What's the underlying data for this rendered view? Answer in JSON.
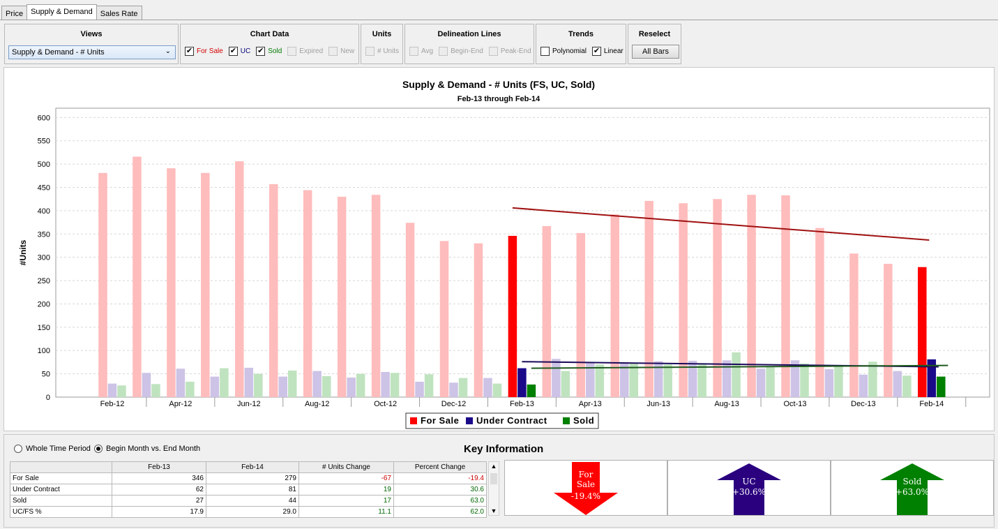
{
  "tabs": [
    {
      "label": "Price"
    },
    {
      "label": "Supply & Demand"
    },
    {
      "label": "Sales Rate"
    }
  ],
  "toolbar": {
    "views": {
      "title": "Views",
      "selected": "Supply & Demand - # Units"
    },
    "chart_data": {
      "title": "Chart Data",
      "items": [
        {
          "label": "For Sale",
          "checked": true,
          "enabled": true,
          "color": "#d40000"
        },
        {
          "label": "UC",
          "checked": true,
          "enabled": true,
          "color": "#00007a"
        },
        {
          "label": "Sold",
          "checked": true,
          "enabled": true,
          "color": "#007a00"
        },
        {
          "label": "Expired",
          "checked": false,
          "enabled": false
        },
        {
          "label": "New",
          "checked": false,
          "enabled": false
        }
      ]
    },
    "units": {
      "title": "Units",
      "items": [
        {
          "label": "# Units",
          "checked": false,
          "enabled": false
        }
      ]
    },
    "delineation": {
      "title": "Delineation Lines",
      "items": [
        {
          "label": "Avg",
          "checked": false,
          "enabled": false
        },
        {
          "label": "Begin-End",
          "checked": false,
          "enabled": false
        },
        {
          "label": "Peak-End",
          "checked": false,
          "enabled": false
        }
      ]
    },
    "trends": {
      "title": "Trends",
      "items": [
        {
          "label": "Polynomial",
          "checked": false,
          "enabled": true
        },
        {
          "label": "Linear",
          "checked": true,
          "enabled": true
        }
      ]
    },
    "reselect": {
      "title": "Reselect",
      "button": "All Bars"
    }
  },
  "chart_data": {
    "type": "bar",
    "title": "Supply & Demand - # Units (FS, UC, Sold)",
    "subtitle": "Feb-13 through Feb-14",
    "ylabel": "#Units",
    "ylim": [
      0,
      620
    ],
    "yticks": [
      0,
      50,
      100,
      150,
      200,
      250,
      300,
      350,
      400,
      450,
      500,
      550,
      600
    ],
    "grid": true,
    "legend_placement": "bottom-center",
    "categories": [
      "Feb-12",
      "Mar-12",
      "Apr-12",
      "May-12",
      "Jun-12",
      "Jul-12",
      "Aug-12",
      "Sep-12",
      "Oct-12",
      "Nov-12",
      "Dec-12",
      "Jan-13",
      "Feb-13",
      "Mar-13",
      "Apr-13",
      "May-13",
      "Jun-13",
      "Jul-13",
      "Aug-13",
      "Sep-13",
      "Oct-13",
      "Nov-13",
      "Dec-13",
      "Jan-14",
      "Feb-14"
    ],
    "tick_labels": [
      "Feb-12",
      "Apr-12",
      "Jun-12",
      "Aug-12",
      "Oct-12",
      "Dec-12",
      "Feb-13",
      "Apr-13",
      "Jun-13",
      "Aug-13",
      "Oct-13",
      "Dec-13",
      "Feb-14"
    ],
    "highlighted": [
      "Feb-13",
      "Feb-14"
    ],
    "series": [
      {
        "name": "For Sale",
        "color": "#ff0000",
        "faded": "#ffbcbc",
        "values": [
          481,
          516,
          491,
          481,
          506,
          457,
          444,
          430,
          434,
          374,
          335,
          330,
          346,
          367,
          352,
          392,
          421,
          416,
          425,
          434,
          433,
          363,
          308,
          286,
          279
        ]
      },
      {
        "name": "Under Contract",
        "color": "#1a0a8a",
        "faded": "#cdc3e6",
        "values": [
          29,
          52,
          61,
          44,
          63,
          44,
          56,
          42,
          54,
          33,
          31,
          41,
          62,
          82,
          73,
          73,
          77,
          78,
          79,
          61,
          79,
          60,
          48,
          56,
          81
        ]
      },
      {
        "name": "Sold",
        "color": "#008000",
        "faded": "#bfe3bf",
        "values": [
          25,
          28,
          33,
          62,
          50,
          57,
          45,
          50,
          52,
          49,
          41,
          29,
          27,
          56,
          70,
          72,
          70,
          72,
          96,
          64,
          72,
          66,
          76,
          46,
          44
        ]
      }
    ],
    "trend_lines": [
      {
        "series": "For Sale",
        "color": "#a01010",
        "from": 406,
        "to": 337
      },
      {
        "series": "Under Contract",
        "color": "#1a0a5a",
        "from": 76,
        "to": 65
      },
      {
        "series": "Sold",
        "color": "#1f5a1f",
        "from": 62,
        "to": 68
      }
    ]
  },
  "bottom": {
    "radios": [
      {
        "label": "Whole Time Period",
        "selected": false
      },
      {
        "label": "Begin Month vs. End Month",
        "selected": true
      }
    ],
    "key_title": "Key Information",
    "table": {
      "headers": [
        "",
        "Feb-13",
        "Feb-14",
        "# Units Change",
        "Percent Change"
      ],
      "rows": [
        {
          "label": "For Sale",
          "a": "346",
          "b": "279",
          "change": "-67",
          "pct": "-19.4",
          "sign": "neg"
        },
        {
          "label": "Under Contract",
          "a": "62",
          "b": "81",
          "change": "19",
          "pct": "30.6",
          "sign": "pos"
        },
        {
          "label": "Sold",
          "a": "27",
          "b": "44",
          "change": "17",
          "pct": "63.0",
          "sign": "pos"
        },
        {
          "label": "UC/FS %",
          "a": "17.9",
          "b": "29.0",
          "change": "11.1",
          "pct": "62.0",
          "sign": "pos"
        }
      ]
    },
    "key_cards": [
      {
        "line1": "For",
        "line2": "Sale",
        "value": "-19.4%",
        "direction": "down",
        "color": "#ff0000"
      },
      {
        "line1": "UC",
        "line2": "",
        "value": "+30.6%",
        "direction": "up",
        "color": "#2a007f"
      },
      {
        "line1": "Sold",
        "line2": "",
        "value": "+63.0%",
        "direction": "up",
        "color": "#008000"
      }
    ]
  }
}
